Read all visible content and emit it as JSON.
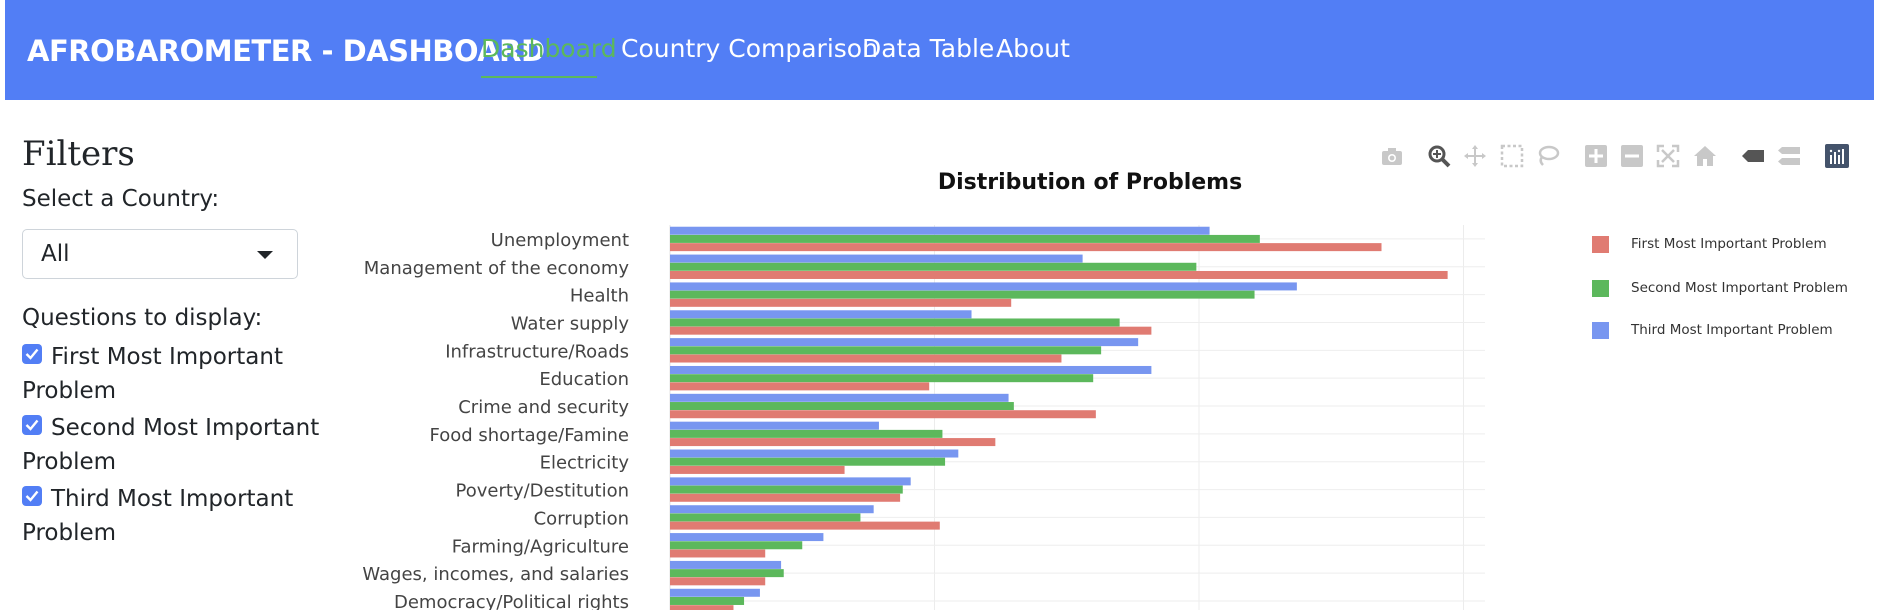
{
  "navbar": {
    "brand": "AFROBAROMETER - DASHBOARD",
    "links": [
      "Dashboard",
      "Country Comparison",
      "Data Table",
      "About"
    ],
    "active": "Dashboard",
    "color": "#527ef5",
    "active_color": "#5cb85c"
  },
  "filters": {
    "title": "Filters",
    "country_label": "Select a Country:",
    "country_value": "All",
    "questions_label": "Questions to display:",
    "questions": [
      {
        "label": "First Most Important Problem",
        "checked": true
      },
      {
        "label": "Second Most Important Problem",
        "checked": true
      },
      {
        "label": "Third Most Important Problem",
        "checked": true
      }
    ]
  },
  "modebar": {
    "icons": [
      "camera-icon",
      "zoom-icon",
      "pan-icon",
      "box-select-icon",
      "lasso-icon",
      "zoom-in-icon",
      "zoom-out-icon",
      "autoscale-icon",
      "reset-axes-icon",
      "spike-lines-icon",
      "compare-hover-icon",
      "plotly-logo-icon"
    ]
  },
  "chart_data": {
    "type": "bar",
    "orientation": "horizontal",
    "title": "Distribution of Problems",
    "categories": [
      "Unemployment",
      "Management of the economy",
      "Health",
      "Water supply",
      "Infrastructure/Roads",
      "Education",
      "Crime and security",
      "Food shortage/Famine",
      "Electricity",
      "Poverty/Destitution",
      "Corruption",
      "Farming/Agriculture",
      "Wages, incomes, and salaries",
      "Democracy/Political rights"
    ],
    "series": [
      {
        "name": "First Most Important Problem",
        "color": "#e07b72",
        "values": [
          26.9,
          29.4,
          12.9,
          18.2,
          14.8,
          9.8,
          16.1,
          12.3,
          6.6,
          8.7,
          10.2,
          3.6,
          3.6,
          2.4
        ]
      },
      {
        "name": "Second Most Important Problem",
        "color": "#5cb85c",
        "values": [
          22.3,
          19.9,
          22.1,
          17.0,
          16.3,
          16.0,
          13.0,
          10.3,
          10.4,
          8.8,
          7.2,
          5.0,
          4.3,
          2.8
        ]
      },
      {
        "name": "Third Most Important Problem",
        "color": "#7896f0",
        "values": [
          20.4,
          15.6,
          23.7,
          11.4,
          17.7,
          18.2,
          12.8,
          7.9,
          10.9,
          9.1,
          7.7,
          5.8,
          4.2,
          3.4
        ]
      }
    ],
    "xlim": [
      0,
      31
    ],
    "gridlines_x": [
      0,
      10,
      20,
      30
    ],
    "grid": true,
    "legend_position": "right"
  }
}
